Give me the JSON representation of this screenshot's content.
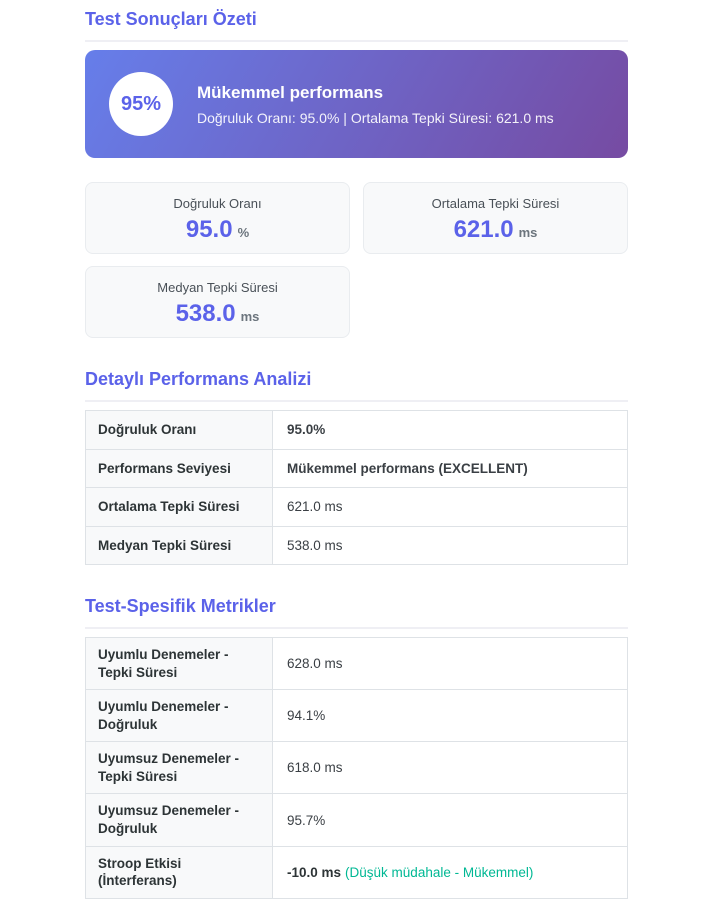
{
  "page": {
    "title": "Test Sonuçları Özeti"
  },
  "colors": {
    "accent": "#5b62e9",
    "success": "#00b894",
    "banner_gradient_start": "#667eea",
    "banner_gradient_end": "#764ba2",
    "card_background": "#f8f9fa"
  },
  "banner": {
    "score": "95%",
    "headline": "Mükemmel performans",
    "subline": "Doğruluk Oranı: 95.0% | Ortalama Tepki Süresi: 621.0 ms"
  },
  "metric_cards": [
    {
      "label": "Doğruluk Oranı",
      "value": "95.0",
      "unit": "%"
    },
    {
      "label": "Ortalama Tepki Süresi",
      "value": "621.0",
      "unit": "ms"
    },
    {
      "label": "Medyan Tepki Süresi",
      "value": "538.0",
      "unit": "ms"
    }
  ],
  "analysis_section": {
    "title": "Detaylı Performans Analizi",
    "rows": [
      {
        "label": "Doğruluk Oranı",
        "value": "95.0%"
      },
      {
        "label": "Performans Seviyesi",
        "value": "Mükemmel performans (EXCELLENT)"
      },
      {
        "label": "Ortalama Tepki Süresi",
        "value": "621.0 ms"
      },
      {
        "label": "Medyan Tepki Süresi",
        "value": "538.0 ms"
      }
    ]
  },
  "test_specific_section": {
    "title": "Test-Spesifik Metrikler",
    "rows": [
      {
        "label": "Uyumlu Denemeler - Tepki Süresi",
        "value": "628.0 ms"
      },
      {
        "label": "Uyumlu Denemeler - Doğruluk",
        "value": "94.1%"
      },
      {
        "label": "Uyumsuz Denemeler - Tepki Süresi",
        "value": "618.0 ms"
      },
      {
        "label": "Uyumsuz Denemeler - Doğruluk",
        "value": "95.7%"
      },
      {
        "label": "Stroop Etkisi (İnterferans)",
        "value": "-10.0 ms",
        "note": "(Düşük müdahale - Mükemmel)"
      }
    ]
  }
}
